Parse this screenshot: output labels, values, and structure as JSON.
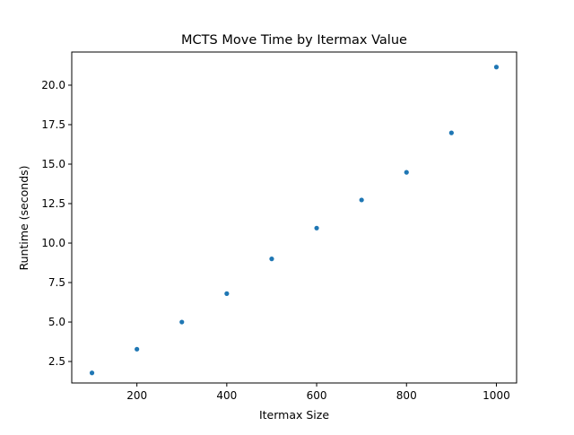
{
  "chart_data": {
    "type": "scatter",
    "title": "MCTS Move Time by Itermax Value",
    "xlabel": "Itermax Size",
    "ylabel": "Runtime (seconds)",
    "xlim": [
      55,
      1045
    ],
    "ylim": [
      1.14,
      22.1
    ],
    "xticks": [
      200,
      400,
      600,
      800,
      1000
    ],
    "xtick_labels": [
      "200",
      "400",
      "600",
      "800",
      "1000"
    ],
    "yticks": [
      2.5,
      5.0,
      7.5,
      10.0,
      12.5,
      15.0,
      17.5,
      20.0
    ],
    "ytick_labels": [
      "2.5",
      "5.0",
      "7.5",
      "10.0",
      "12.5",
      "15.0",
      "17.5",
      "20.0"
    ],
    "grid": false,
    "legend": false,
    "marker_color": "#1f77b4",
    "series": [
      {
        "x": [
          100,
          200,
          300,
          400,
          500,
          600,
          700,
          800,
          900,
          1000
        ],
        "y": [
          1.78,
          3.28,
          5.0,
          6.8,
          9.0,
          10.95,
          12.73,
          14.48,
          16.98,
          21.15
        ]
      }
    ]
  }
}
